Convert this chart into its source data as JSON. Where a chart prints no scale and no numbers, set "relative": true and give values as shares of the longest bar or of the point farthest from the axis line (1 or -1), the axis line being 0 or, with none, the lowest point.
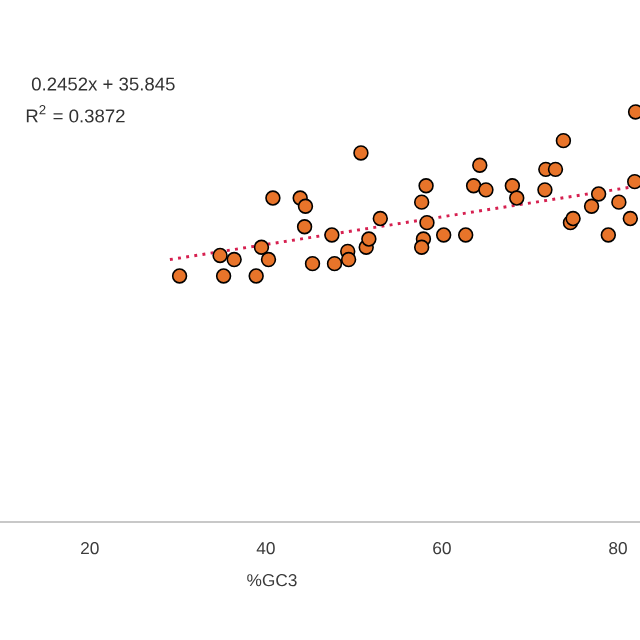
{
  "chart_data": {
    "type": "scatter",
    "xlabel": "%GC3",
    "relative": true,
    "marker": "circle",
    "xlim": [
      9.8,
      82.5
    ],
    "xticks": [
      20,
      40,
      60,
      80
    ],
    "annotations": [
      "0.2452x + 35.845",
      "R$^{2}$ = 0.3872"
    ],
    "series": [
      {
        "color": "#e8742a",
        "x": [
          30.2,
          35.2,
          34.8,
          36.4,
          38.9,
          39.5,
          40.3,
          40.8,
          43.9,
          44.5,
          44.4,
          45.3,
          47.5,
          47.8,
          49.3,
          49.4,
          51.4,
          51.7,
          50.8,
          53.0,
          57.7,
          58.2,
          58.3,
          57.9,
          57.7,
          60.2,
          62.7,
          63.6,
          64.3,
          65.0,
          68.0,
          68.5,
          71.7,
          71.8,
          72.9,
          73.8,
          74.6,
          74.9,
          77.0,
          77.8,
          78.9,
          80.1,
          81.4,
          81.9,
          82.0
        ],
        "values": [
          0.6,
          0.6,
          0.65,
          0.64,
          0.6,
          0.67,
          0.64,
          0.79,
          0.79,
          0.77,
          0.72,
          0.63,
          0.7,
          0.63,
          0.66,
          0.64,
          0.67,
          0.69,
          0.9,
          0.74,
          0.78,
          0.82,
          0.73,
          0.69,
          0.67,
          0.7,
          0.7,
          0.82,
          0.87,
          0.81,
          0.82,
          0.79,
          0.81,
          0.86,
          0.86,
          0.93,
          0.73,
          0.74,
          0.77,
          0.8,
          0.7,
          0.78,
          0.74,
          0.83,
          1.0
        ]
      },
      {
        "type": "line",
        "color": "#d62050",
        "line_style": "dotted",
        "marker": "none",
        "x": [
          29.1,
          82.5
        ],
        "values": [
          0.64,
          0.82
        ]
      }
    ]
  }
}
